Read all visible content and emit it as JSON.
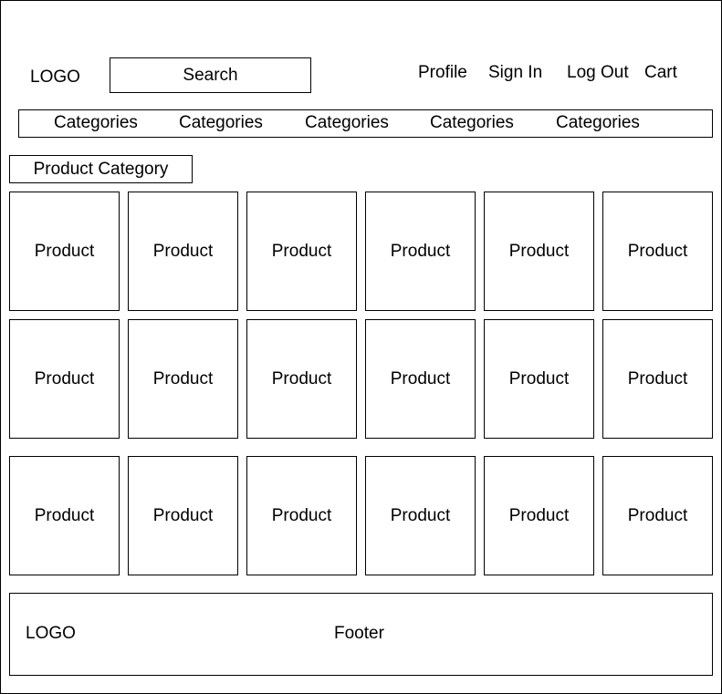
{
  "header": {
    "logo": "LOGO",
    "search_label": "Search",
    "nav": {
      "profile": "Profile",
      "sign_in": "Sign In",
      "log_out": "Log Out",
      "cart": "Cart"
    }
  },
  "categories": [
    "Categories",
    "Categories",
    "Categories",
    "Categories",
    "Categories"
  ],
  "product_category": "Product Category",
  "products": [
    [
      "Product",
      "Product",
      "Product",
      "Product",
      "Product",
      "Product"
    ],
    [
      "Product",
      "Product",
      "Product",
      "Product",
      "Product",
      "Product"
    ],
    [
      "Product",
      "Product",
      "Product",
      "Product",
      "Product",
      "Product"
    ]
  ],
  "footer": {
    "logo": "LOGO",
    "label": "Footer"
  }
}
